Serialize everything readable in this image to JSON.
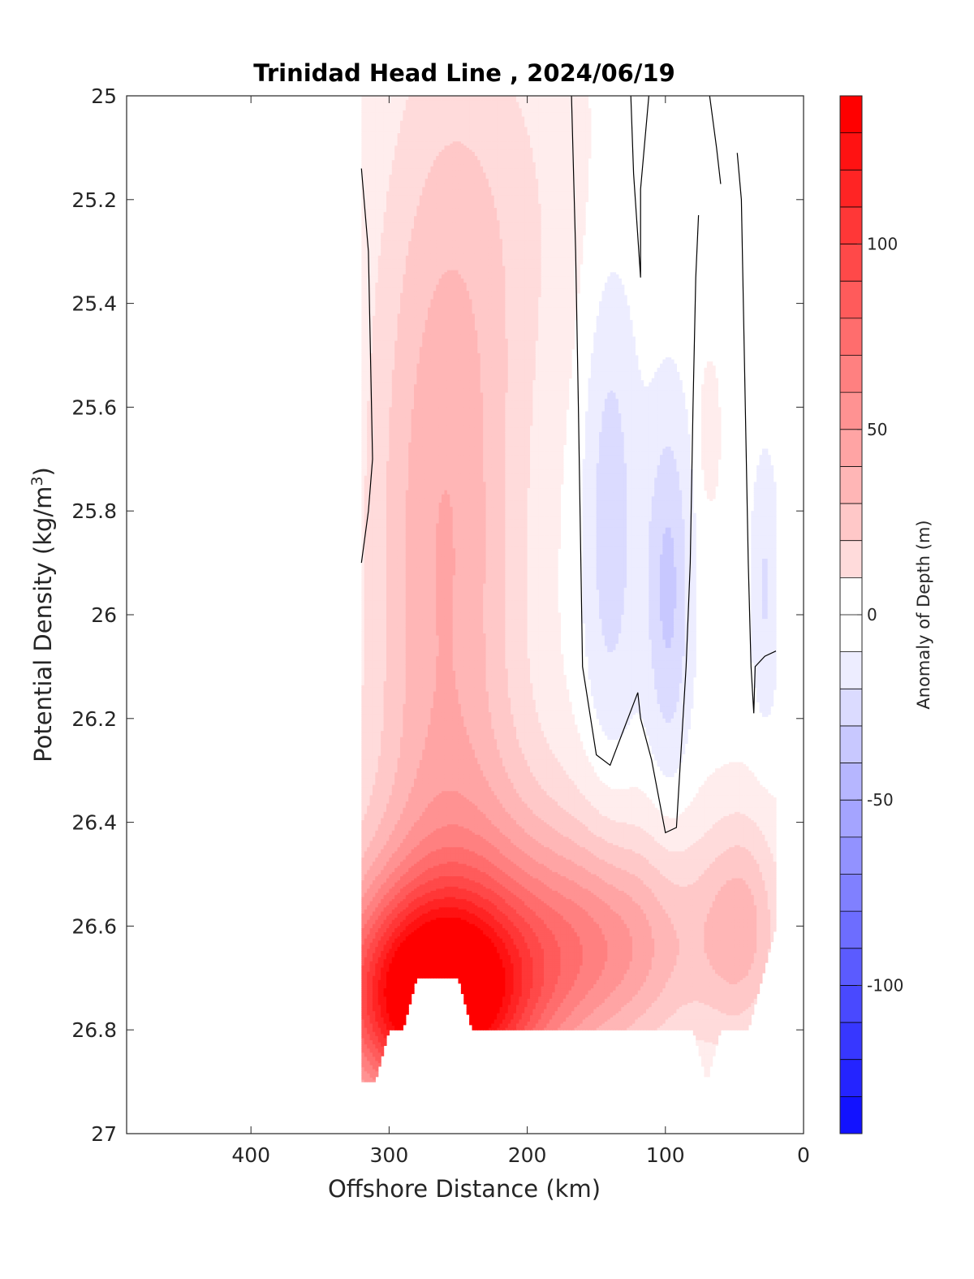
{
  "chart_data": {
    "type": "contourf",
    "title": "Trinidad Head Line , 2024/06/19",
    "xlabel": "Offshore Distance (km)",
    "ylabel": "Potential Density (kg/m^3)",
    "ylabel_text": "Potential Density (kg/m",
    "ylabel_sup": "3",
    "ylabel_close": ")",
    "xlim": [
      490,
      0
    ],
    "xdir": "reverse",
    "ylim": [
      25,
      27
    ],
    "ydir": "reverse",
    "xticks": [
      400,
      300,
      200,
      100,
      0
    ],
    "xtick_labels": [
      "400",
      "300",
      "200",
      "100",
      "0"
    ],
    "yticks": [
      25,
      25.2,
      25.4,
      25.6,
      25.8,
      26,
      26.2,
      26.4,
      26.6,
      26.8,
      27
    ],
    "ytick_labels": [
      "25",
      "25.2",
      "25.4",
      "25.6",
      "25.8",
      "26",
      "26.2",
      "26.4",
      "26.6",
      "26.8",
      "27"
    ],
    "grid": false,
    "colorbar": {
      "label": "Anomaly of Depth (m)",
      "range": [
        -140,
        140
      ],
      "level_step": 10,
      "colormap": "blue-white-red",
      "negative_color": "#0000ff",
      "zero_color": "#ffffff",
      "positive_color": "#ff0000",
      "ticks": [
        100,
        50,
        0,
        -50,
        -100
      ],
      "tick_labels": [
        "100",
        "50",
        "0",
        "-50",
        "-100"
      ]
    },
    "field": {
      "description_units": "anomaly of isopycnal depth (m) vs offshore distance (km) and potential density (kg/m^3)",
      "blobs": [
        {
          "x": 268,
          "y": 26.74,
          "sx": 70,
          "sy": 0.2,
          "amp": 135
        },
        {
          "x": 230,
          "y": 26.62,
          "sx": 95,
          "sy": 0.32,
          "amp": 40
        },
        {
          "x": 140,
          "y": 26.64,
          "sx": 70,
          "sy": 0.2,
          "amp": 45
        },
        {
          "x": 260,
          "y": 25.9,
          "sx": 55,
          "sy": 0.9,
          "amp": 45
        },
        {
          "x": 200,
          "y": 25.2,
          "sx": 70,
          "sy": 0.45,
          "amp": 10
        },
        {
          "x": 45,
          "y": 26.6,
          "sx": 30,
          "sy": 0.22,
          "amp": 35
        },
        {
          "x": 140,
          "y": 25.8,
          "sx": 20,
          "sy": 0.5,
          "amp": -22
        },
        {
          "x": 98,
          "y": 25.95,
          "sx": 16,
          "sy": 0.35,
          "amp": -28
        },
        {
          "x": 28,
          "y": 25.95,
          "sx": 10,
          "sy": 0.25,
          "amp": -16
        },
        {
          "x": 68,
          "y": 25.65,
          "sx": 8,
          "sy": 0.15,
          "amp": 12
        }
      ],
      "data_extent": {
        "x_max": 320,
        "x_min": 20,
        "y_min": 25,
        "bottom_edge": [
          [
            320,
            26.9
          ],
          [
            310,
            26.9
          ],
          [
            300,
            26.8
          ],
          [
            290,
            26.8
          ],
          [
            280,
            26.7
          ],
          [
            270,
            26.7
          ],
          [
            250,
            26.7
          ],
          [
            240,
            26.8
          ],
          [
            150,
            26.8
          ],
          [
            80,
            26.8
          ],
          [
            70,
            26.9
          ],
          [
            60,
            26.8
          ],
          [
            40,
            26.8
          ],
          [
            30,
            26.7
          ],
          [
            20,
            26.6
          ]
        ]
      }
    },
    "zero_contours": [
      [
        [
          320,
          25.14
        ],
        [
          315,
          25.3
        ],
        [
          312,
          25.7
        ],
        [
          315,
          25.8
        ],
        [
          320,
          25.9
        ]
      ],
      [
        [
          168,
          25
        ],
        [
          165,
          25.3
        ],
        [
          163,
          25.6
        ],
        [
          160,
          26.1
        ],
        [
          150,
          26.27
        ],
        [
          140,
          26.29
        ],
        [
          130,
          26.22
        ],
        [
          120,
          26.15
        ],
        [
          118,
          26.2
        ],
        [
          110,
          26.28
        ],
        [
          100,
          26.42
        ],
        [
          92,
          26.41
        ],
        [
          85,
          26.1
        ],
        [
          82,
          25.9
        ],
        [
          80,
          25.6
        ],
        [
          78,
          25.35
        ],
        [
          76,
          25.23
        ]
      ],
      [
        [
          125,
          25
        ],
        [
          123,
          25.15
        ],
        [
          118,
          25.35
        ],
        [
          118,
          25.18
        ],
        [
          112,
          25
        ]
      ],
      [
        [
          68,
          25
        ],
        [
          63,
          25.1
        ],
        [
          60,
          25.17
        ]
      ],
      [
        [
          48,
          25.11
        ],
        [
          45,
          25.2
        ],
        [
          40,
          25.9
        ],
        [
          38,
          26.1
        ],
        [
          36,
          26.19
        ],
        [
          35,
          26.1
        ],
        [
          28,
          26.08
        ],
        [
          20,
          26.07
        ]
      ]
    ]
  }
}
